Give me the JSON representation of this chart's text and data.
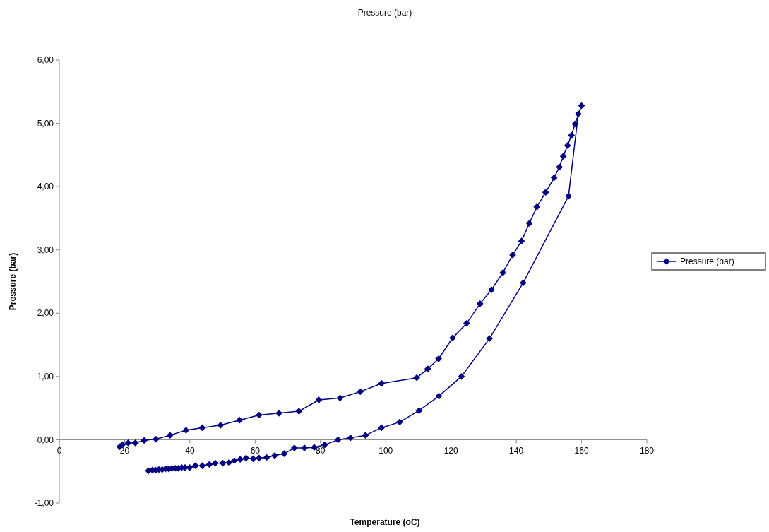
{
  "chart_data": {
    "type": "line",
    "title": "Pressure (bar)",
    "xlabel": "Temperature (oC)",
    "ylabel": "Pressure (bar)",
    "xlim": [
      0,
      180
    ],
    "xticks": [
      0,
      20,
      40,
      60,
      80,
      100,
      120,
      140,
      160,
      180
    ],
    "ylim": [
      -1,
      6
    ],
    "yticks": [
      {
        "value": -1,
        "label": "-1,00"
      },
      {
        "value": 0,
        "label": "0,00"
      },
      {
        "value": 1,
        "label": "1,00"
      },
      {
        "value": 2,
        "label": "2,00"
      },
      {
        "value": 3,
        "label": "3,00"
      },
      {
        "value": 4,
        "label": "4,00"
      },
      {
        "value": 5,
        "label": "5,00"
      },
      {
        "value": 6,
        "label": "6,00"
      }
    ],
    "grid": false,
    "legend": "right",
    "marker": "diamond",
    "line_style": "solid",
    "series": [
      {
        "name": "Pressure (bar)",
        "color": "#000080",
        "x": [
          27.3,
          28.5,
          29.5,
          30.5,
          31.5,
          32.5,
          33.5,
          34.5,
          35.5,
          36.5,
          37.5,
          38.5,
          39.9,
          41.7,
          43.8,
          46.0,
          47.8,
          50.1,
          52.0,
          53.6,
          55.4,
          57.2,
          59.4,
          61.2,
          63.5,
          66.0,
          68.9,
          72.0,
          75.1,
          78.1,
          81.3,
          85.4,
          89.2,
          93.8,
          98.7,
          104.3,
          110.2,
          116.3,
          123.2,
          131.8,
          142.1,
          156.0,
          159.0,
          160.0,
          158.0,
          156.9,
          155.7,
          154.4,
          153.2,
          151.6,
          149.0,
          146.3,
          144.0,
          141.6,
          138.9,
          135.9,
          132.4,
          128.9,
          124.8,
          120.5,
          116.2,
          112.9,
          109.5,
          98.7,
          92.2,
          86.0,
          79.5,
          73.4,
          67.3,
          61.2,
          55.2,
          49.4,
          43.8,
          38.8,
          33.9,
          29.6,
          26.0,
          23.3,
          21.1,
          19.3,
          18.5
        ],
        "values": [
          -0.49,
          -0.48,
          -0.48,
          -0.47,
          -0.47,
          -0.46,
          -0.46,
          -0.45,
          -0.45,
          -0.45,
          -0.44,
          -0.44,
          -0.44,
          -0.41,
          -0.41,
          -0.39,
          -0.37,
          -0.37,
          -0.36,
          -0.33,
          -0.31,
          -0.29,
          -0.3,
          -0.29,
          -0.28,
          -0.25,
          -0.22,
          -0.13,
          -0.13,
          -0.12,
          -0.08,
          0.0,
          0.03,
          0.07,
          0.19,
          0.28,
          0.46,
          0.69,
          1.0,
          1.6,
          2.48,
          3.85,
          5.15,
          5.28,
          4.99,
          4.81,
          4.65,
          4.48,
          4.31,
          4.14,
          3.91,
          3.68,
          3.42,
          3.14,
          2.92,
          2.64,
          2.37,
          2.15,
          1.84,
          1.61,
          1.28,
          1.12,
          0.98,
          0.89,
          0.76,
          0.66,
          0.63,
          0.45,
          0.42,
          0.39,
          0.31,
          0.23,
          0.19,
          0.15,
          0.07,
          0.01,
          -0.01,
          -0.05,
          -0.05,
          -0.08,
          -0.11
        ]
      }
    ]
  }
}
